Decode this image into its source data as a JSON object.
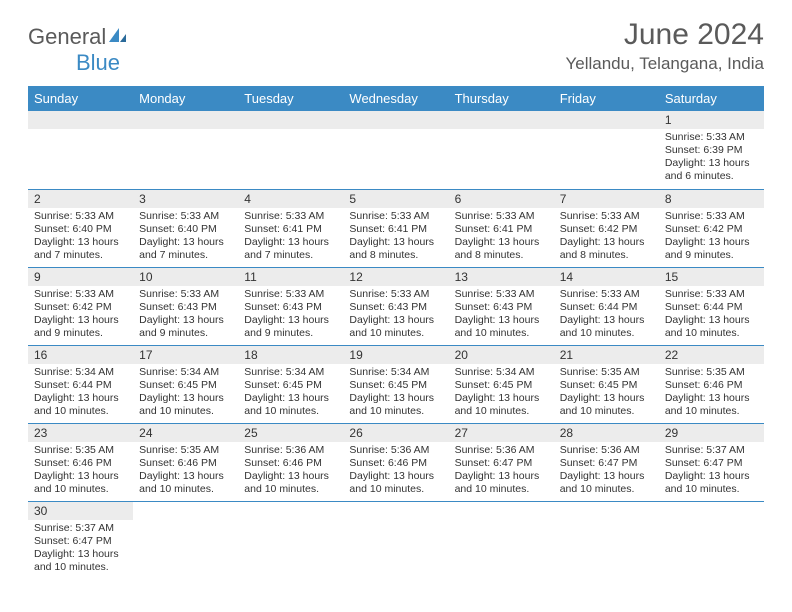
{
  "logo": {
    "text1": "General",
    "text2": "Blue"
  },
  "title": "June 2024",
  "location": "Yellandu, Telangana, India",
  "weekdays": [
    "Sunday",
    "Monday",
    "Tuesday",
    "Wednesday",
    "Thursday",
    "Friday",
    "Saturday"
  ],
  "colors": {
    "header_bg": "#3b8ac4",
    "header_text": "#ffffff",
    "daynum_bg": "#ececec",
    "border": "#3b8ac4",
    "text": "#333333",
    "title_text": "#5a5a5a"
  },
  "weeks": [
    [
      null,
      null,
      null,
      null,
      null,
      null,
      {
        "n": "1",
        "sr": "Sunrise: 5:33 AM",
        "ss": "Sunset: 6:39 PM",
        "dl": "Daylight: 13 hours and 6 minutes."
      }
    ],
    [
      {
        "n": "2",
        "sr": "Sunrise: 5:33 AM",
        "ss": "Sunset: 6:40 PM",
        "dl": "Daylight: 13 hours and 7 minutes."
      },
      {
        "n": "3",
        "sr": "Sunrise: 5:33 AM",
        "ss": "Sunset: 6:40 PM",
        "dl": "Daylight: 13 hours and 7 minutes."
      },
      {
        "n": "4",
        "sr": "Sunrise: 5:33 AM",
        "ss": "Sunset: 6:41 PM",
        "dl": "Daylight: 13 hours and 7 minutes."
      },
      {
        "n": "5",
        "sr": "Sunrise: 5:33 AM",
        "ss": "Sunset: 6:41 PM",
        "dl": "Daylight: 13 hours and 8 minutes."
      },
      {
        "n": "6",
        "sr": "Sunrise: 5:33 AM",
        "ss": "Sunset: 6:41 PM",
        "dl": "Daylight: 13 hours and 8 minutes."
      },
      {
        "n": "7",
        "sr": "Sunrise: 5:33 AM",
        "ss": "Sunset: 6:42 PM",
        "dl": "Daylight: 13 hours and 8 minutes."
      },
      {
        "n": "8",
        "sr": "Sunrise: 5:33 AM",
        "ss": "Sunset: 6:42 PM",
        "dl": "Daylight: 13 hours and 9 minutes."
      }
    ],
    [
      {
        "n": "9",
        "sr": "Sunrise: 5:33 AM",
        "ss": "Sunset: 6:42 PM",
        "dl": "Daylight: 13 hours and 9 minutes."
      },
      {
        "n": "10",
        "sr": "Sunrise: 5:33 AM",
        "ss": "Sunset: 6:43 PM",
        "dl": "Daylight: 13 hours and 9 minutes."
      },
      {
        "n": "11",
        "sr": "Sunrise: 5:33 AM",
        "ss": "Sunset: 6:43 PM",
        "dl": "Daylight: 13 hours and 9 minutes."
      },
      {
        "n": "12",
        "sr": "Sunrise: 5:33 AM",
        "ss": "Sunset: 6:43 PM",
        "dl": "Daylight: 13 hours and 10 minutes."
      },
      {
        "n": "13",
        "sr": "Sunrise: 5:33 AM",
        "ss": "Sunset: 6:43 PM",
        "dl": "Daylight: 13 hours and 10 minutes."
      },
      {
        "n": "14",
        "sr": "Sunrise: 5:33 AM",
        "ss": "Sunset: 6:44 PM",
        "dl": "Daylight: 13 hours and 10 minutes."
      },
      {
        "n": "15",
        "sr": "Sunrise: 5:33 AM",
        "ss": "Sunset: 6:44 PM",
        "dl": "Daylight: 13 hours and 10 minutes."
      }
    ],
    [
      {
        "n": "16",
        "sr": "Sunrise: 5:34 AM",
        "ss": "Sunset: 6:44 PM",
        "dl": "Daylight: 13 hours and 10 minutes."
      },
      {
        "n": "17",
        "sr": "Sunrise: 5:34 AM",
        "ss": "Sunset: 6:45 PM",
        "dl": "Daylight: 13 hours and 10 minutes."
      },
      {
        "n": "18",
        "sr": "Sunrise: 5:34 AM",
        "ss": "Sunset: 6:45 PM",
        "dl": "Daylight: 13 hours and 10 minutes."
      },
      {
        "n": "19",
        "sr": "Sunrise: 5:34 AM",
        "ss": "Sunset: 6:45 PM",
        "dl": "Daylight: 13 hours and 10 minutes."
      },
      {
        "n": "20",
        "sr": "Sunrise: 5:34 AM",
        "ss": "Sunset: 6:45 PM",
        "dl": "Daylight: 13 hours and 10 minutes."
      },
      {
        "n": "21",
        "sr": "Sunrise: 5:35 AM",
        "ss": "Sunset: 6:45 PM",
        "dl": "Daylight: 13 hours and 10 minutes."
      },
      {
        "n": "22",
        "sr": "Sunrise: 5:35 AM",
        "ss": "Sunset: 6:46 PM",
        "dl": "Daylight: 13 hours and 10 minutes."
      }
    ],
    [
      {
        "n": "23",
        "sr": "Sunrise: 5:35 AM",
        "ss": "Sunset: 6:46 PM",
        "dl": "Daylight: 13 hours and 10 minutes."
      },
      {
        "n": "24",
        "sr": "Sunrise: 5:35 AM",
        "ss": "Sunset: 6:46 PM",
        "dl": "Daylight: 13 hours and 10 minutes."
      },
      {
        "n": "25",
        "sr": "Sunrise: 5:36 AM",
        "ss": "Sunset: 6:46 PM",
        "dl": "Daylight: 13 hours and 10 minutes."
      },
      {
        "n": "26",
        "sr": "Sunrise: 5:36 AM",
        "ss": "Sunset: 6:46 PM",
        "dl": "Daylight: 13 hours and 10 minutes."
      },
      {
        "n": "27",
        "sr": "Sunrise: 5:36 AM",
        "ss": "Sunset: 6:47 PM",
        "dl": "Daylight: 13 hours and 10 minutes."
      },
      {
        "n": "28",
        "sr": "Sunrise: 5:36 AM",
        "ss": "Sunset: 6:47 PM",
        "dl": "Daylight: 13 hours and 10 minutes."
      },
      {
        "n": "29",
        "sr": "Sunrise: 5:37 AM",
        "ss": "Sunset: 6:47 PM",
        "dl": "Daylight: 13 hours and 10 minutes."
      }
    ],
    [
      {
        "n": "30",
        "sr": "Sunrise: 5:37 AM",
        "ss": "Sunset: 6:47 PM",
        "dl": "Daylight: 13 hours and 10 minutes."
      },
      null,
      null,
      null,
      null,
      null,
      null
    ]
  ]
}
